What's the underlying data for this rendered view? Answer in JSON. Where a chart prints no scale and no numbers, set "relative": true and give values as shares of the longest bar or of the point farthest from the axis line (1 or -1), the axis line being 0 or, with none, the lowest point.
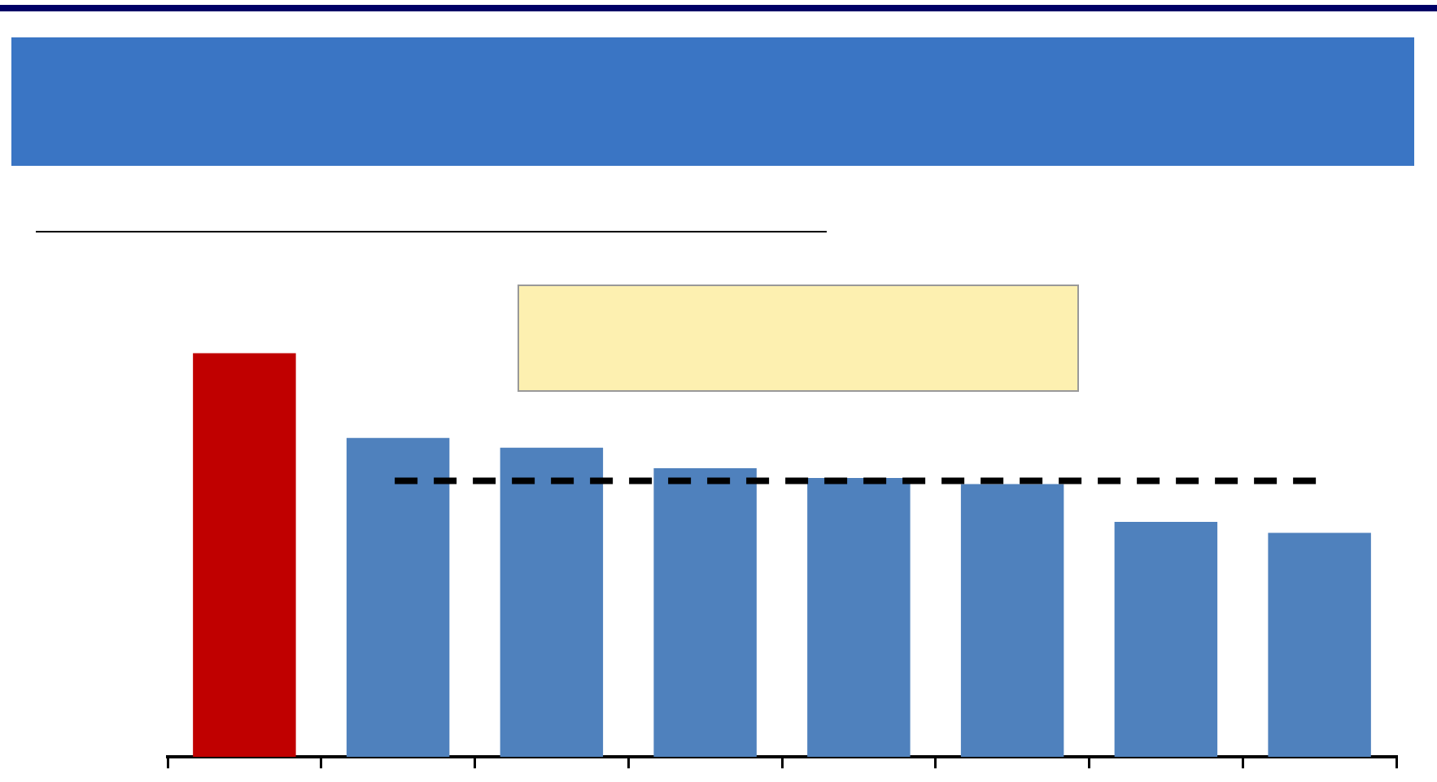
{
  "chart_data": {
    "type": "bar",
    "relative": true,
    "categories": [
      null,
      null,
      null,
      null,
      null,
      null,
      null,
      null
    ],
    "values": [
      1,
      0.79,
      0.766,
      0.715,
      0.691,
      0.676,
      0.582,
      0.555
    ],
    "colors": [
      "#c00000",
      "#4f81bd",
      "#4f81bd",
      "#4f81bd",
      "#4f81bd",
      "#4f81bd",
      "#4f81bd",
      "#4f81bd"
    ],
    "ref_lines": [
      {
        "axis": "y",
        "value": 0.684,
        "color": "#000000",
        "line_style": "dashed"
      }
    ],
    "grid": false,
    "legend": false
  }
}
